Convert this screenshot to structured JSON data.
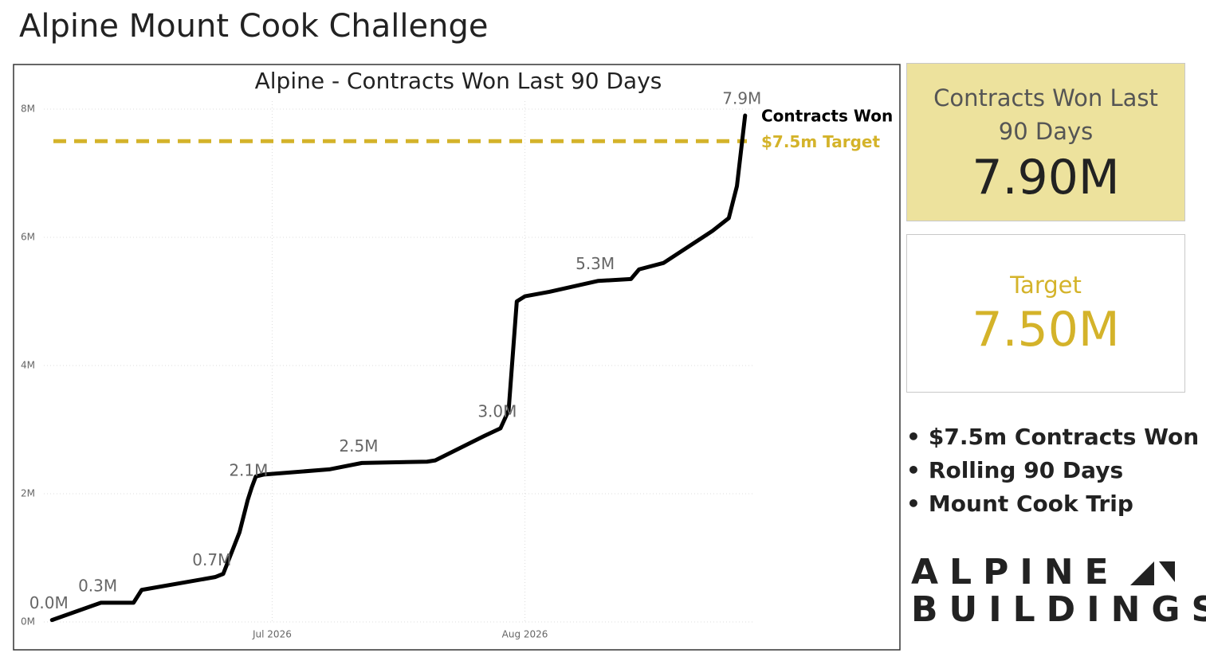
{
  "page": {
    "title": "Alpine Mount Cook Challenge"
  },
  "chart_data": {
    "type": "line",
    "title": "Alpine - Contracts Won Last 90 Days",
    "x": [
      -27,
      -21,
      -17,
      -16,
      -7,
      -6,
      -4,
      -3,
      -2.5,
      -2,
      -1,
      7,
      11,
      19,
      20,
      26,
      28,
      29,
      30,
      31,
      34,
      40,
      44,
      45,
      48,
      54,
      56,
      57,
      58
    ],
    "series": [
      {
        "name": "Contracts Won",
        "color": "#000000",
        "values": [
          0.03,
          0.3,
          0.3,
          0.5,
          0.7,
          0.75,
          1.4,
          1.9,
          2.1,
          2.27,
          2.3,
          2.38,
          2.48,
          2.5,
          2.52,
          2.9,
          3.02,
          3.3,
          5.0,
          5.08,
          5.15,
          5.32,
          5.35,
          5.5,
          5.6,
          6.1,
          6.3,
          6.8,
          7.9
        ],
        "value_labels": [
          "0.0M",
          "0.3M",
          null,
          null,
          "0.7M",
          null,
          null,
          null,
          "2.1M",
          null,
          null,
          null,
          "2.5M",
          null,
          null,
          null,
          "3.0M",
          null,
          null,
          null,
          null,
          "5.3M",
          null,
          null,
          null,
          null,
          null,
          null,
          "7.9M"
        ]
      }
    ],
    "reference_lines": [
      {
        "name": "$7.5m Target",
        "value": 7.5,
        "color": "#d4b32a"
      }
    ],
    "xlim": [
      -28,
      59
    ],
    "xticks": [
      {
        "value": 0,
        "label": "Jul 2026"
      },
      {
        "value": 31,
        "label": "Aug 2026"
      }
    ],
    "ylim": [
      0,
      8
    ],
    "yticks": [
      {
        "value": 0,
        "label": "0M"
      },
      {
        "value": 2,
        "label": "2M"
      },
      {
        "value": 4,
        "label": "4M"
      },
      {
        "value": 6,
        "label": "6M"
      },
      {
        "value": 8,
        "label": "8M"
      }
    ],
    "grid": true
  },
  "cards": [
    {
      "title": "Contracts Won Last 90 Days",
      "value": "7.90M"
    },
    {
      "title": "Target",
      "value": "7.50M"
    }
  ],
  "bullets": [
    "$7.5m Contracts Won",
    "Rolling 90 Days",
    "Mount Cook Trip"
  ],
  "logo": {
    "line1": "ALPINE",
    "line2": "BUILDINGS"
  }
}
